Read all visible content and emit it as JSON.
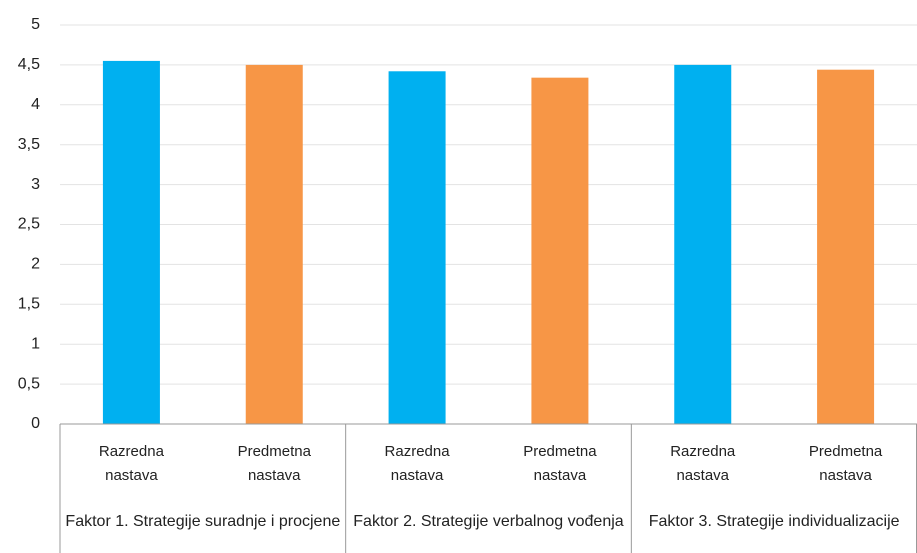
{
  "chart_data": {
    "type": "bar",
    "categories": [
      "Razredna nastava",
      "Predmetna nastava",
      "Razredna nastava",
      "Predmetna nastava",
      "Razredna nastava",
      "Predmetna nastava"
    ],
    "groups": [
      "Faktor 1. Strategije suradnje i procjene",
      "Faktor 2. Strategije verbalnog vođenja",
      "Faktor 3. Strategije individualizacije"
    ],
    "values": [
      4.55,
      4.5,
      4.42,
      4.34,
      4.5,
      4.44
    ],
    "colors": [
      "#00b0f0",
      "#f79646",
      "#00b0f0",
      "#f79646",
      "#00b0f0",
      "#f79646"
    ],
    "ylim": [
      0,
      5
    ],
    "yticks": [
      0,
      {
        "value": 0.5,
        "label": "0,5"
      },
      1,
      {
        "value": 1.5,
        "label": "1,5"
      },
      2,
      {
        "value": 2.5,
        "label": "2,5"
      },
      3,
      {
        "value": 3.5,
        "label": "3,5"
      },
      4,
      {
        "value": 4.5,
        "label": "4,5"
      },
      5
    ],
    "grid": true
  }
}
